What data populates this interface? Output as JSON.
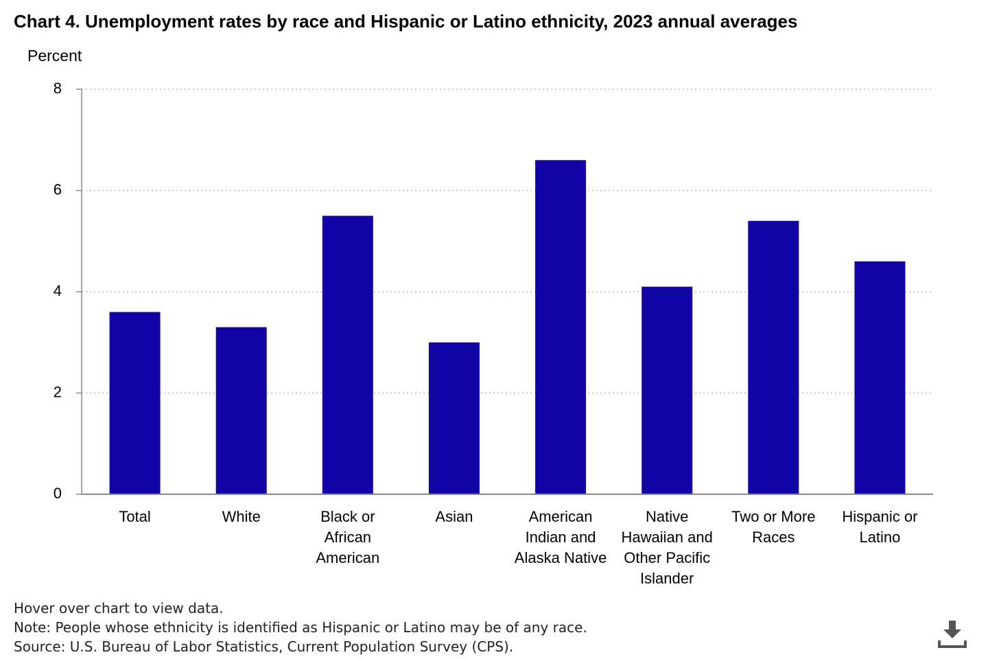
{
  "chart_data": {
    "type": "bar",
    "title": "Chart 4. Unemployment rates by race and Hispanic or Latino ethnicity, 2023 annual averages",
    "y_label": "Percent",
    "categories": [
      "Total",
      "White",
      "Black or African American",
      "Asian",
      "American Indian and Alaska Native",
      "Native Hawaiian and Other Pacific Islander",
      "Two or More Races",
      "Hispanic or Latino"
    ],
    "values": [
      3.6,
      3.3,
      5.5,
      3.0,
      6.6,
      4.1,
      5.4,
      4.6
    ],
    "color": "#1105a5",
    "ylim": [
      0,
      8
    ],
    "yticks": [
      0,
      2,
      4,
      6,
      8
    ],
    "grid": true
  },
  "footer": {
    "hint": "Hover over chart to view data.",
    "note": "Note: People whose ethnicity is identified as Hispanic or Latino may be of any race.",
    "source": "Source: U.S. Bureau of Labor Statistics, Current Population Survey (CPS)."
  }
}
